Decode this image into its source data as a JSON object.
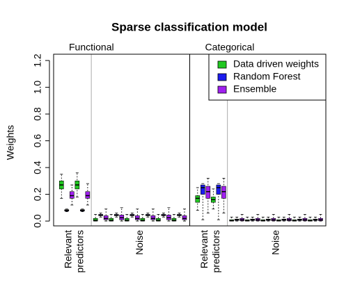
{
  "chart_data": {
    "type": "box",
    "title": "Sparse classification model",
    "ylabel": "Weights",
    "ylim": [
      -0.036,
      1.247
    ],
    "yticks": [
      {
        "value": 0,
        "label": "0.0"
      },
      0.2,
      0.4,
      0.6,
      0.8,
      {
        "value": 1,
        "label": "1.0"
      },
      1.2
    ],
    "legend_position": "top-right",
    "series": [
      {
        "name": "Data driven weights",
        "color": "#22c822"
      },
      {
        "name": "Random Forest",
        "color": "#1c1cee"
      },
      {
        "name": "Ensemble",
        "color": "#a020f0"
      }
    ],
    "panels": [
      {
        "title": "Functional",
        "groups": [
          {
            "label": [
              "Relevant",
              "predictors"
            ],
            "boxes": [
              [
                [
                  0.17,
                  0.24,
                  0.27,
                  0.3,
                  0.35
                ],
                [
                  0.07,
                  0.075,
                  0.08,
                  0.085,
                  0.09
                ],
                [
                  0.12,
                  0.17,
                  0.19,
                  0.22,
                  0.27
                ]
              ],
              [
                [
                  0.18,
                  0.24,
                  0.27,
                  0.3,
                  0.36
                ],
                [
                  0.07,
                  0.075,
                  0.08,
                  0.085,
                  0.09
                ],
                [
                  0.12,
                  0.17,
                  0.19,
                  0.22,
                  0.28
                ]
              ]
            ]
          },
          {
            "label": [
              "Noise"
            ],
            "boxes": [
              [
                [
                  0,
                  0,
                  0.005,
                  0.02,
                  0.05
                ],
                [
                  0.03,
                  0.04,
                  0.045,
                  0.05,
                  0.06
                ],
                [
                  0,
                  0.01,
                  0.02,
                  0.04,
                  0.09
                ]
              ],
              [
                [
                  0,
                  0,
                  0.005,
                  0.02,
                  0.05
                ],
                [
                  0.03,
                  0.04,
                  0.045,
                  0.05,
                  0.06
                ],
                [
                  0,
                  0.01,
                  0.025,
                  0.045,
                  0.1
                ]
              ],
              [
                [
                  0,
                  0,
                  0.005,
                  0.02,
                  0.05
                ],
                [
                  0.03,
                  0.04,
                  0.045,
                  0.05,
                  0.06
                ],
                [
                  0,
                  0.01,
                  0.02,
                  0.04,
                  0.09
                ]
              ],
              [
                [
                  0,
                  0,
                  0.005,
                  0.02,
                  0.05
                ],
                [
                  0.03,
                  0.04,
                  0.045,
                  0.05,
                  0.06
                ],
                [
                  0,
                  0.01,
                  0.02,
                  0.04,
                  0.09
                ]
              ],
              [
                [
                  0,
                  0,
                  0.005,
                  0.02,
                  0.05
                ],
                [
                  0.03,
                  0.04,
                  0.045,
                  0.05,
                  0.06
                ],
                [
                  0,
                  0.01,
                  0.025,
                  0.045,
                  0.1
                ]
              ],
              [
                [
                  0,
                  0,
                  0.005,
                  0.02,
                  0.05
                ],
                [
                  0.03,
                  0.04,
                  0.045,
                  0.05,
                  0.06
                ],
                [
                  0,
                  0.01,
                  0.02,
                  0.04,
                  0.09
                ]
              ]
            ]
          }
        ]
      },
      {
        "title": "Categorical",
        "groups": [
          {
            "label": [
              "Relevant",
              "predictors"
            ],
            "boxes": [
              [
                [
                  0.08,
                  0.14,
                  0.17,
                  0.19,
                  0.25
                ],
                [
                  0.01,
                  0.2,
                  0.25,
                  0.27,
                  0.28
                ],
                [
                  0.06,
                  0.17,
                  0.22,
                  0.26,
                  0.32
                ]
              ],
              [
                [
                  0.09,
                  0.14,
                  0.16,
                  0.18,
                  0.24
                ],
                [
                  0.01,
                  0.2,
                  0.25,
                  0.27,
                  0.28
                ],
                [
                  0.06,
                  0.17,
                  0.22,
                  0.26,
                  0.32
                ]
              ]
            ]
          },
          {
            "label": [
              "Noise"
            ],
            "boxes": [
              [
                [
                  0,
                  0,
                  0.003,
                  0.01,
                  0.03
                ],
                [
                  0,
                  0.005,
                  0.01,
                  0.015,
                  0.03
                ],
                [
                  0,
                  0.003,
                  0.01,
                  0.02,
                  0.05
                ]
              ],
              [
                [
                  0,
                  0,
                  0.003,
                  0.01,
                  0.03
                ],
                [
                  0,
                  0.005,
                  0.01,
                  0.015,
                  0.03
                ],
                [
                  0,
                  0.003,
                  0.01,
                  0.02,
                  0.05
                ]
              ],
              [
                [
                  0,
                  0,
                  0.003,
                  0.01,
                  0.03
                ],
                [
                  0,
                  0.005,
                  0.01,
                  0.015,
                  0.03
                ],
                [
                  0,
                  0.003,
                  0.01,
                  0.02,
                  0.05
                ]
              ],
              [
                [
                  0,
                  0,
                  0.003,
                  0.01,
                  0.03
                ],
                [
                  0,
                  0.005,
                  0.01,
                  0.015,
                  0.03
                ],
                [
                  0,
                  0.003,
                  0.01,
                  0.02,
                  0.05
                ]
              ],
              [
                [
                  0,
                  0,
                  0.003,
                  0.01,
                  0.03
                ],
                [
                  0,
                  0.005,
                  0.01,
                  0.015,
                  0.03
                ],
                [
                  0,
                  0.003,
                  0.01,
                  0.02,
                  0.05
                ]
              ],
              [
                [
                  0,
                  0,
                  0.003,
                  0.01,
                  0.03
                ],
                [
                  0,
                  0.005,
                  0.01,
                  0.015,
                  0.03
                ],
                [
                  0,
                  0.003,
                  0.01,
                  0.02,
                  0.05
                ]
              ]
            ]
          }
        ]
      }
    ]
  }
}
